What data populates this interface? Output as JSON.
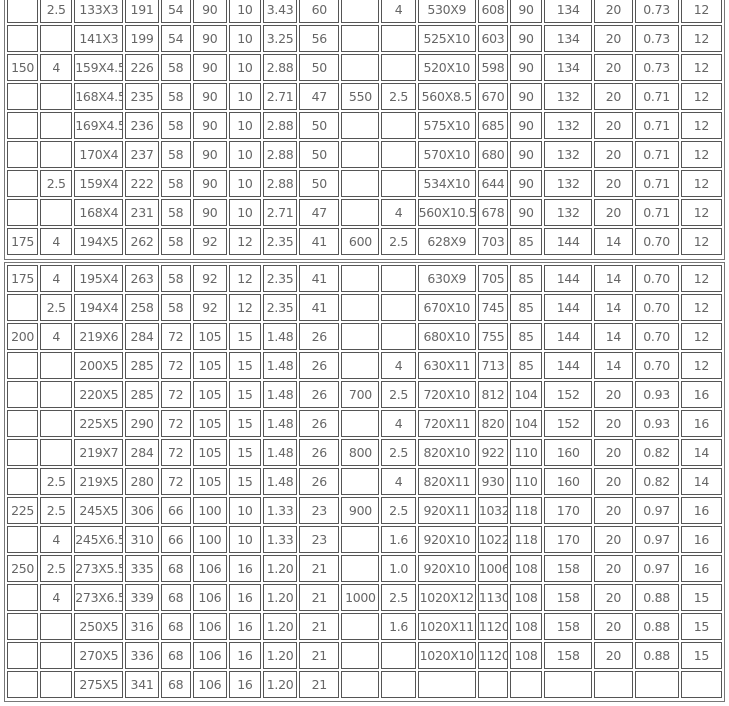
{
  "tables": [
    {
      "rows": [
        [
          "",
          "2.5",
          "133X3",
          "191",
          "54",
          "90",
          "10",
          "3.43",
          "60",
          "",
          "4",
          "530X9",
          "608",
          "90",
          "134",
          "20",
          "0.73",
          "12"
        ],
        [
          "",
          "",
          "141X3",
          "199",
          "54",
          "90",
          "10",
          "3.25",
          "56",
          "",
          "",
          "525X10",
          "603",
          "90",
          "134",
          "20",
          "0.73",
          "12"
        ],
        [
          "150",
          "4",
          "159X4.5",
          "226",
          "58",
          "90",
          "10",
          "2.88",
          "50",
          "",
          "",
          "520X10",
          "598",
          "90",
          "134",
          "20",
          "0.73",
          "12"
        ],
        [
          "",
          "",
          "168X4.5",
          "235",
          "58",
          "90",
          "10",
          "2.71",
          "47",
          "550",
          "2.5",
          "560X8.5",
          "670",
          "90",
          "132",
          "20",
          "0.71",
          "12"
        ],
        [
          "",
          "",
          "169X4.5",
          "236",
          "58",
          "90",
          "10",
          "2.88",
          "50",
          "",
          "",
          "575X10",
          "685",
          "90",
          "132",
          "20",
          "0.71",
          "12"
        ],
        [
          "",
          "",
          "170X4",
          "237",
          "58",
          "90",
          "10",
          "2.88",
          "50",
          "",
          "",
          "570X10",
          "680",
          "90",
          "132",
          "20",
          "0.71",
          "12"
        ],
        [
          "",
          "2.5",
          "159X4",
          "222",
          "58",
          "90",
          "10",
          "2.88",
          "50",
          "",
          "",
          "534X10",
          "644",
          "90",
          "132",
          "20",
          "0.71",
          "12"
        ],
        [
          "",
          "",
          "168X4",
          "231",
          "58",
          "90",
          "10",
          "2.71",
          "47",
          "",
          "4",
          "560X10.5",
          "678",
          "90",
          "132",
          "20",
          "0.71",
          "12"
        ],
        [
          "175",
          "4",
          "194X5",
          "262",
          "58",
          "92",
          "12",
          "2.35",
          "41",
          "600",
          "2.5",
          "628X9",
          "703",
          "85",
          "144",
          "14",
          "0.70",
          "12"
        ]
      ]
    },
    {
      "rows": [
        [
          "175",
          "4",
          "195X4",
          "263",
          "58",
          "92",
          "12",
          "2.35",
          "41",
          "",
          "",
          "630X9",
          "705",
          "85",
          "144",
          "14",
          "0.70",
          "12"
        ],
        [
          "",
          "2.5",
          "194X4",
          "258",
          "58",
          "92",
          "12",
          "2.35",
          "41",
          "",
          "",
          "670X10",
          "745",
          "85",
          "144",
          "14",
          "0.70",
          "12"
        ],
        [
          "200",
          "4",
          "219X6",
          "284",
          "72",
          "105",
          "15",
          "1.48",
          "26",
          "",
          "",
          "680X10",
          "755",
          "85",
          "144",
          "14",
          "0.70",
          "12"
        ],
        [
          "",
          "",
          "200X5",
          "285",
          "72",
          "105",
          "15",
          "1.48",
          "26",
          "",
          "4",
          "630X11",
          "713",
          "85",
          "144",
          "14",
          "0.70",
          "12"
        ],
        [
          "",
          "",
          "220X5",
          "285",
          "72",
          "105",
          "15",
          "1.48",
          "26",
          "700",
          "2.5",
          "720X10",
          "812",
          "104",
          "152",
          "20",
          "0.93",
          "16"
        ],
        [
          "",
          "",
          "225X5",
          "290",
          "72",
          "105",
          "15",
          "1.48",
          "26",
          "",
          "4",
          "720X11",
          "820",
          "104",
          "152",
          "20",
          "0.93",
          "16"
        ],
        [
          "",
          "",
          "219X7",
          "284",
          "72",
          "105",
          "15",
          "1.48",
          "26",
          "800",
          "2.5",
          "820X10",
          "922",
          "110",
          "160",
          "20",
          "0.82",
          "14"
        ],
        [
          "",
          "2.5",
          "219X5",
          "280",
          "72",
          "105",
          "15",
          "1.48",
          "26",
          "",
          "4",
          "820X11",
          "930",
          "110",
          "160",
          "20",
          "0.82",
          "14"
        ],
        [
          "225",
          "2.5",
          "245X5",
          "306",
          "66",
          "100",
          "10",
          "1.33",
          "23",
          "900",
          "2.5",
          "920X11",
          "1032",
          "118",
          "170",
          "20",
          "0.97",
          "16"
        ],
        [
          "",
          "4",
          "245X6.5",
          "310",
          "66",
          "100",
          "10",
          "1.33",
          "23",
          "",
          "1.6",
          "920X10",
          "1022",
          "118",
          "170",
          "20",
          "0.97",
          "16"
        ],
        [
          "250",
          "2.5",
          "273X5.5",
          "335",
          "68",
          "106",
          "16",
          "1.20",
          "21",
          "",
          "1.0",
          "920X10",
          "1006",
          "108",
          "158",
          "20",
          "0.97",
          "16"
        ],
        [
          "",
          "4",
          "273X6.5",
          "339",
          "68",
          "106",
          "16",
          "1.20",
          "21",
          "1000",
          "2.5",
          "1020X12",
          "1130",
          "108",
          "158",
          "20",
          "0.88",
          "15"
        ],
        [
          "",
          "",
          "250X5",
          "316",
          "68",
          "106",
          "16",
          "1.20",
          "21",
          "",
          "1.6",
          "1020X11",
          "1120",
          "108",
          "158",
          "20",
          "0.88",
          "15"
        ],
        [
          "",
          "",
          "270X5",
          "336",
          "68",
          "106",
          "16",
          "1.20",
          "21",
          "",
          "",
          "1020X10",
          "1120",
          "108",
          "158",
          "20",
          "0.88",
          "15"
        ],
        [
          "",
          "",
          "275X5",
          "341",
          "68",
          "106",
          "16",
          "1.20",
          "21",
          "",
          "",
          "",
          "",
          "",
          "",
          "",
          "",
          ""
        ]
      ]
    }
  ]
}
